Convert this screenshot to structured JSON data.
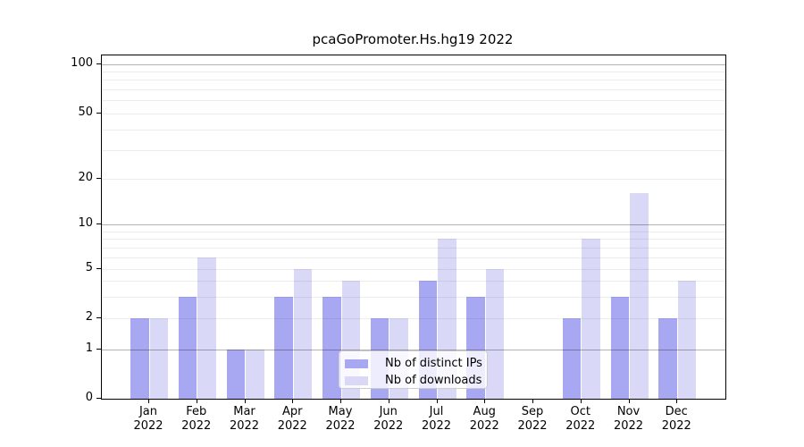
{
  "chart_data": {
    "type": "bar",
    "title": "pcaGoPromoter.Hs.hg19 2022",
    "categories": [
      "Jan",
      "Feb",
      "Mar",
      "Apr",
      "May",
      "Jun",
      "Jul",
      "Aug",
      "Sep",
      "Oct",
      "Nov",
      "Dec"
    ],
    "year_label": "2022",
    "series": [
      {
        "name": "Nb of distinct IPs",
        "color": "#a7a7f2",
        "values": [
          2,
          3,
          1,
          3,
          3,
          2,
          4,
          3,
          0,
          2,
          3,
          2
        ]
      },
      {
        "name": "Nb of downloads",
        "color": "#d9d9f7",
        "values": [
          2,
          6,
          1,
          5,
          4,
          2,
          8,
          5,
          0,
          8,
          16,
          4
        ]
      }
    ],
    "y_ticks": [
      0,
      1,
      2,
      5,
      10,
      20,
      50,
      100
    ],
    "major_gridlines": [
      1,
      10,
      100
    ],
    "minor_gridlines": [
      2,
      3,
      4,
      5,
      6,
      7,
      8,
      9,
      20,
      30,
      40,
      50,
      60,
      70,
      80,
      90
    ],
    "yscale": "log",
    "ylim": [
      0,
      120
    ],
    "grid": true,
    "legend_position": "lower center inside plot"
  },
  "colors": {
    "background": "#ffffff",
    "axis": "#000000",
    "bar_distinct_ips": "#a7a7f2",
    "bar_downloads": "#d9d9f7",
    "legend_border": "#cccccc"
  }
}
